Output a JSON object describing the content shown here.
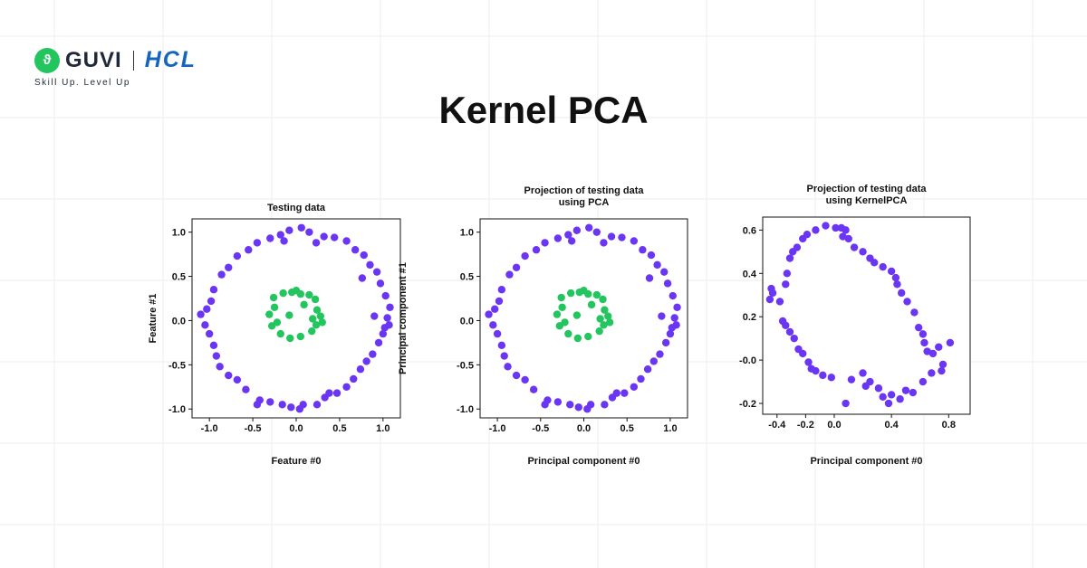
{
  "brand": {
    "guvi": "GUVI",
    "hcl": "HCL",
    "tagline": "Skill Up. Level Up"
  },
  "page_title": "Kernel PCA",
  "colors": {
    "outer": "#6a35f3",
    "inner": "#22c55e",
    "grid": "#eeeeee"
  },
  "chart_data": [
    {
      "type": "scatter",
      "title": [
        "Testing data"
      ],
      "xlabel": "Feature #0",
      "ylabel": "Feature #1",
      "xlim": [
        -1.2,
        1.2
      ],
      "ylim": [
        -1.1,
        1.15
      ],
      "xticks": [
        -1.0,
        -0.5,
        0.0,
        0.5,
        1.0
      ],
      "xtick_labels": [
        "-1.0",
        "-0.5",
        "0.0",
        "0.5",
        "1.0"
      ],
      "yticks": [
        1.0,
        0.5,
        0.0,
        -0.5,
        -1.0
      ],
      "ytick_labels": [
        "1.0",
        "0.5",
        "0.0",
        "-0.5",
        "-1.0"
      ],
      "series": [
        {
          "name": "outer circle",
          "color": "#6a35f3",
          "points": [
            [
              1.05,
              0.03
            ],
            [
              1.07,
              -0.05
            ],
            [
              1.08,
              0.15
            ],
            [
              1.03,
              0.28
            ],
            [
              0.97,
              0.42
            ],
            [
              0.93,
              0.55
            ],
            [
              0.85,
              0.63
            ],
            [
              0.78,
              0.74
            ],
            [
              0.68,
              0.8
            ],
            [
              0.58,
              0.9
            ],
            [
              0.44,
              0.94
            ],
            [
              0.32,
              0.95
            ],
            [
              0.15,
              1.0
            ],
            [
              0.06,
              1.05
            ],
            [
              -0.08,
              1.02
            ],
            [
              -0.18,
              0.97
            ],
            [
              -0.3,
              0.93
            ],
            [
              -0.45,
              0.88
            ],
            [
              -0.55,
              0.8
            ],
            [
              -0.68,
              0.73
            ],
            [
              -0.78,
              0.6
            ],
            [
              -0.86,
              0.52
            ],
            [
              -0.95,
              0.35
            ],
            [
              -0.98,
              0.22
            ],
            [
              -1.03,
              0.13
            ],
            [
              -1.1,
              0.07
            ],
            [
              -1.05,
              -0.05
            ],
            [
              -1.0,
              -0.15
            ],
            [
              -0.95,
              -0.28
            ],
            [
              -0.92,
              -0.4
            ],
            [
              -0.88,
              -0.52
            ],
            [
              -0.78,
              -0.62
            ],
            [
              -0.68,
              -0.67
            ],
            [
              -0.58,
              -0.78
            ],
            [
              -0.42,
              -0.9
            ],
            [
              -0.3,
              -0.92
            ],
            [
              -0.16,
              -0.95
            ],
            [
              -0.06,
              -0.98
            ],
            [
              0.04,
              -1.0
            ],
            [
              0.08,
              -0.95
            ],
            [
              0.24,
              -0.95
            ],
            [
              0.33,
              -0.87
            ],
            [
              0.38,
              -0.82
            ],
            [
              0.47,
              -0.82
            ],
            [
              0.58,
              -0.75
            ],
            [
              0.66,
              -0.66
            ],
            [
              0.74,
              -0.55
            ],
            [
              0.81,
              -0.46
            ],
            [
              0.88,
              -0.38
            ],
            [
              0.95,
              -0.25
            ],
            [
              1.0,
              -0.15
            ],
            [
              1.02,
              -0.08
            ],
            [
              0.9,
              0.05
            ],
            [
              0.76,
              0.48
            ],
            [
              -0.45,
              -0.95
            ],
            [
              0.23,
              0.88
            ],
            [
              -0.14,
              0.9
            ]
          ]
        },
        {
          "name": "inner circle",
          "color": "#22c55e",
          "points": [
            [
              -0.05,
              0.32
            ],
            [
              0.05,
              0.3
            ],
            [
              0.15,
              0.29
            ],
            [
              0.22,
              0.24
            ],
            [
              0.24,
              0.12
            ],
            [
              0.28,
              0.05
            ],
            [
              0.23,
              -0.05
            ],
            [
              0.18,
              -0.12
            ],
            [
              0.05,
              -0.18
            ],
            [
              -0.07,
              -0.2
            ],
            [
              -0.18,
              -0.15
            ],
            [
              -0.28,
              -0.06
            ],
            [
              -0.31,
              0.07
            ],
            [
              -0.25,
              0.15
            ],
            [
              -0.26,
              0.26
            ],
            [
              -0.15,
              0.31
            ],
            [
              0.09,
              0.18
            ],
            [
              -0.08,
              0.06
            ],
            [
              0.19,
              0.02
            ],
            [
              -0.22,
              -0.02
            ],
            [
              0.0,
              0.34
            ],
            [
              0.3,
              -0.02
            ]
          ]
        }
      ]
    },
    {
      "type": "scatter",
      "title": [
        "Projection of testing data",
        "using PCA"
      ],
      "xlabel": "Principal component #0",
      "ylabel": "Principal component #1",
      "xlim": [
        -1.2,
        1.2
      ],
      "ylim": [
        -1.1,
        1.15
      ],
      "xticks": [
        -1.0,
        -0.5,
        0.0,
        0.5,
        1.0
      ],
      "xtick_labels": [
        "-1.0",
        "-0.5",
        "0.0",
        "0.5",
        "1.0"
      ],
      "yticks": [
        1.0,
        0.5,
        0.0,
        -0.5,
        -1.0
      ],
      "ytick_labels": [
        "1.0",
        "0.5",
        "0.0",
        "-0.5",
        "-1.0"
      ],
      "series": [
        {
          "name": "outer circle",
          "color": "#6a35f3",
          "points": [
            [
              1.05,
              0.03
            ],
            [
              1.07,
              -0.05
            ],
            [
              1.08,
              0.15
            ],
            [
              1.03,
              0.28
            ],
            [
              0.97,
              0.42
            ],
            [
              0.93,
              0.55
            ],
            [
              0.85,
              0.63
            ],
            [
              0.78,
              0.74
            ],
            [
              0.68,
              0.8
            ],
            [
              0.58,
              0.9
            ],
            [
              0.44,
              0.94
            ],
            [
              0.32,
              0.95
            ],
            [
              0.15,
              1.0
            ],
            [
              0.06,
              1.05
            ],
            [
              -0.08,
              1.02
            ],
            [
              -0.18,
              0.97
            ],
            [
              -0.3,
              0.93
            ],
            [
              -0.45,
              0.88
            ],
            [
              -0.55,
              0.8
            ],
            [
              -0.68,
              0.73
            ],
            [
              -0.78,
              0.6
            ],
            [
              -0.86,
              0.52
            ],
            [
              -0.95,
              0.35
            ],
            [
              -0.98,
              0.22
            ],
            [
              -1.03,
              0.13
            ],
            [
              -1.1,
              0.07
            ],
            [
              -1.05,
              -0.05
            ],
            [
              -1.0,
              -0.15
            ],
            [
              -0.95,
              -0.28
            ],
            [
              -0.92,
              -0.4
            ],
            [
              -0.88,
              -0.52
            ],
            [
              -0.78,
              -0.62
            ],
            [
              -0.68,
              -0.67
            ],
            [
              -0.58,
              -0.78
            ],
            [
              -0.42,
              -0.9
            ],
            [
              -0.3,
              -0.92
            ],
            [
              -0.16,
              -0.95
            ],
            [
              -0.06,
              -0.98
            ],
            [
              0.04,
              -1.0
            ],
            [
              0.08,
              -0.95
            ],
            [
              0.24,
              -0.95
            ],
            [
              0.33,
              -0.87
            ],
            [
              0.38,
              -0.82
            ],
            [
              0.47,
              -0.82
            ],
            [
              0.58,
              -0.75
            ],
            [
              0.66,
              -0.66
            ],
            [
              0.74,
              -0.55
            ],
            [
              0.81,
              -0.46
            ],
            [
              0.88,
              -0.38
            ],
            [
              0.95,
              -0.25
            ],
            [
              1.0,
              -0.15
            ],
            [
              1.02,
              -0.08
            ],
            [
              0.9,
              0.05
            ],
            [
              0.76,
              0.48
            ],
            [
              -0.45,
              -0.95
            ],
            [
              0.23,
              0.88
            ],
            [
              -0.14,
              0.9
            ]
          ]
        },
        {
          "name": "inner circle",
          "color": "#22c55e",
          "points": [
            [
              -0.05,
              0.32
            ],
            [
              0.05,
              0.3
            ],
            [
              0.15,
              0.29
            ],
            [
              0.22,
              0.24
            ],
            [
              0.24,
              0.12
            ],
            [
              0.28,
              0.05
            ],
            [
              0.23,
              -0.05
            ],
            [
              0.18,
              -0.12
            ],
            [
              0.05,
              -0.18
            ],
            [
              -0.07,
              -0.2
            ],
            [
              -0.18,
              -0.15
            ],
            [
              -0.28,
              -0.06
            ],
            [
              -0.31,
              0.07
            ],
            [
              -0.25,
              0.15
            ],
            [
              -0.26,
              0.26
            ],
            [
              -0.15,
              0.31
            ],
            [
              0.09,
              0.18
            ],
            [
              -0.08,
              0.06
            ],
            [
              0.19,
              0.02
            ],
            [
              -0.22,
              -0.02
            ],
            [
              0.0,
              0.34
            ],
            [
              0.3,
              -0.02
            ]
          ]
        }
      ]
    },
    {
      "type": "scatter",
      "title": [
        "Projection of testing data",
        "using KernelPCA"
      ],
      "xlabel": "Principal component #0",
      "ylabel": "",
      "xlim": [
        -0.5,
        0.95
      ],
      "ylim": [
        -0.25,
        0.66
      ],
      "xticks": [
        -0.4,
        -0.2,
        0.0,
        0.4,
        0.8
      ],
      "xtick_labels": [
        "-0.4",
        "-0.2",
        "0.0",
        "0.4",
        "0.8"
      ],
      "yticks": [
        0.6,
        0.4,
        0.2,
        0.0,
        -0.2
      ],
      "ytick_labels": [
        "0.6",
        "0.4",
        "0.2",
        "-0.0",
        "-0.2"
      ],
      "series": [
        {
          "name": "transformed",
          "color": "#6a35f3",
          "points": [
            [
              -0.45,
              0.28
            ],
            [
              -0.43,
              0.31
            ],
            [
              -0.44,
              0.33
            ],
            [
              -0.38,
              0.27
            ],
            [
              -0.34,
              0.35
            ],
            [
              -0.33,
              0.4
            ],
            [
              -0.31,
              0.47
            ],
            [
              -0.29,
              0.5
            ],
            [
              -0.26,
              0.52
            ],
            [
              -0.22,
              0.56
            ],
            [
              -0.19,
              0.58
            ],
            [
              -0.13,
              0.6
            ],
            [
              -0.06,
              0.62
            ],
            [
              0.01,
              0.61
            ],
            [
              0.05,
              0.61
            ],
            [
              0.08,
              0.6
            ],
            [
              0.06,
              0.57
            ],
            [
              0.1,
              0.56
            ],
            [
              0.14,
              0.52
            ],
            [
              0.2,
              0.5
            ],
            [
              0.25,
              0.47
            ],
            [
              0.28,
              0.45
            ],
            [
              0.34,
              0.43
            ],
            [
              0.4,
              0.41
            ],
            [
              0.43,
              0.38
            ],
            [
              0.44,
              0.35
            ],
            [
              0.47,
              0.31
            ],
            [
              0.51,
              0.27
            ],
            [
              0.56,
              0.22
            ],
            [
              0.59,
              0.15
            ],
            [
              0.62,
              0.12
            ],
            [
              0.63,
              0.08
            ],
            [
              0.65,
              0.04
            ],
            [
              0.69,
              0.03
            ],
            [
              0.73,
              0.06
            ],
            [
              0.81,
              0.08
            ],
            [
              0.76,
              -0.02
            ],
            [
              0.75,
              -0.05
            ],
            [
              0.68,
              -0.06
            ],
            [
              0.62,
              -0.1
            ],
            [
              0.55,
              -0.15
            ],
            [
              0.5,
              -0.14
            ],
            [
              0.46,
              -0.18
            ],
            [
              0.4,
              -0.16
            ],
            [
              0.38,
              -0.2
            ],
            [
              0.34,
              -0.17
            ],
            [
              0.31,
              -0.13
            ],
            [
              0.25,
              -0.1
            ],
            [
              0.22,
              -0.12
            ],
            [
              0.2,
              -0.06
            ],
            [
              0.12,
              -0.09
            ],
            [
              0.08,
              -0.2
            ],
            [
              -0.02,
              -0.08
            ],
            [
              -0.08,
              -0.07
            ],
            [
              -0.13,
              -0.05
            ],
            [
              -0.16,
              -0.04
            ],
            [
              -0.18,
              -0.01
            ],
            [
              -0.22,
              0.03
            ],
            [
              -0.25,
              0.05
            ],
            [
              -0.28,
              0.1
            ],
            [
              -0.31,
              0.13
            ],
            [
              -0.34,
              0.16
            ],
            [
              -0.36,
              0.18
            ]
          ]
        }
      ]
    }
  ]
}
